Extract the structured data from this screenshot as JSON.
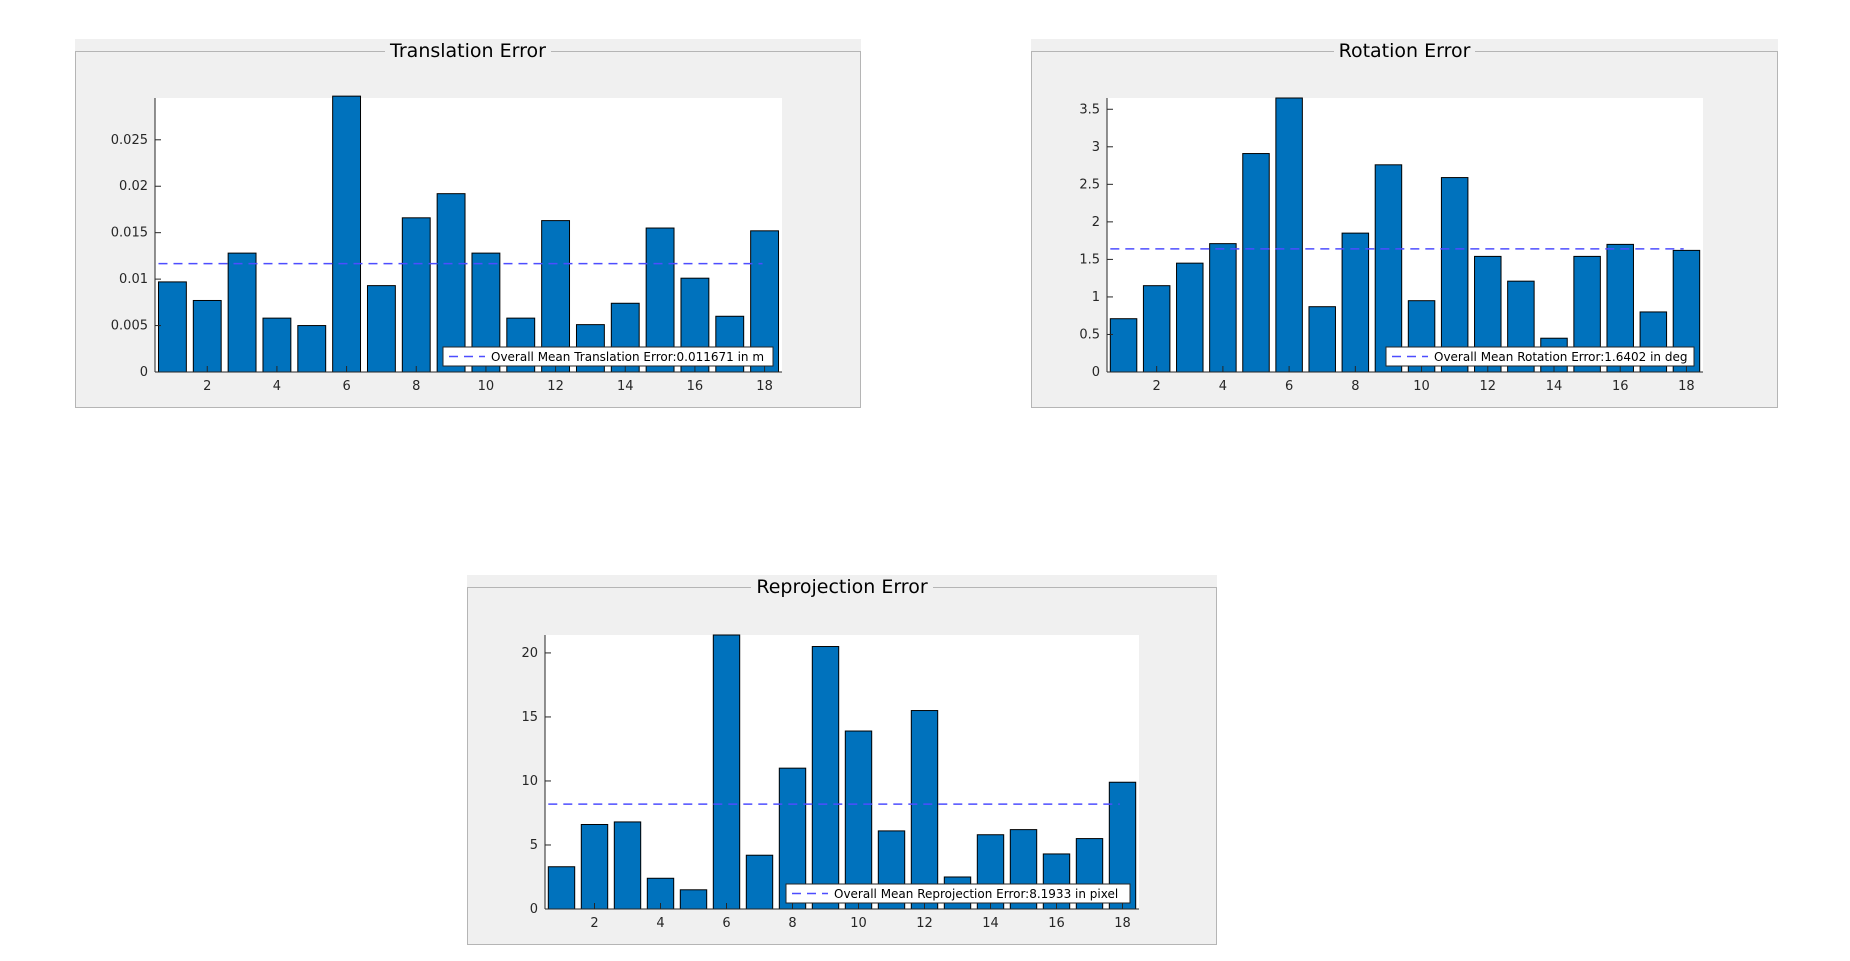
{
  "colors": {
    "bar": "#0072bd",
    "bar_edge": "#000000",
    "mean_line": "#4d4dff",
    "panel_bg": "#f0f0f0",
    "axes_bg": "#ffffff"
  },
  "chart_data": [
    {
      "id": "translation",
      "type": "bar",
      "title": "Translation Error",
      "xlabel": "",
      "ylabel": "",
      "x": [
        1,
        2,
        3,
        4,
        5,
        6,
        7,
        8,
        9,
        10,
        11,
        12,
        13,
        14,
        15,
        16,
        17,
        18
      ],
      "values": [
        0.0097,
        0.0077,
        0.0128,
        0.0058,
        0.005,
        0.0297,
        0.0093,
        0.0166,
        0.0192,
        0.0128,
        0.0058,
        0.0163,
        0.0051,
        0.0074,
        0.0155,
        0.0101,
        0.006,
        0.0152
      ],
      "xlim": [
        0.5,
        18.5
      ],
      "ylim": [
        0,
        0.0295
      ],
      "xticks": [
        2,
        4,
        6,
        8,
        10,
        12,
        14,
        16,
        18
      ],
      "yticks": [
        0,
        0.005,
        0.01,
        0.015,
        0.02,
        0.025
      ],
      "yticklabels": [
        "0",
        "0.005",
        "0.01",
        "0.015",
        "0.02",
        "0.025"
      ],
      "mean": 0.011671,
      "legend": "Overall Mean Translation Error:0.011671 in m",
      "legend_location": "bottom-right",
      "grid": false
    },
    {
      "id": "rotation",
      "type": "bar",
      "title": "Rotation Error",
      "xlabel": "",
      "ylabel": "",
      "x": [
        1,
        2,
        3,
        4,
        5,
        6,
        7,
        8,
        9,
        10,
        11,
        12,
        13,
        14,
        15,
        16,
        17,
        18
      ],
      "values": [
        0.71,
        1.15,
        1.45,
        1.71,
        2.91,
        3.65,
        0.87,
        1.85,
        2.76,
        0.95,
        2.59,
        1.54,
        1.21,
        0.45,
        1.54,
        1.7,
        0.8,
        1.62
      ],
      "xlim": [
        0.5,
        18.5
      ],
      "ylim": [
        0,
        3.65
      ],
      "xticks": [
        2,
        4,
        6,
        8,
        10,
        12,
        14,
        16,
        18
      ],
      "yticks": [
        0,
        0.5,
        1,
        1.5,
        2,
        2.5,
        3,
        3.5
      ],
      "yticklabels": [
        "0",
        "0.5",
        "1",
        "1.5",
        "2",
        "2.5",
        "3",
        "3.5"
      ],
      "mean": 1.6402,
      "legend": "Overall Mean Rotation Error:1.6402 in deg",
      "legend_location": "bottom-right",
      "grid": false
    },
    {
      "id": "reprojection",
      "type": "bar",
      "title": "Reprojection Error",
      "xlabel": "",
      "ylabel": "",
      "x": [
        1,
        2,
        3,
        4,
        5,
        6,
        7,
        8,
        9,
        10,
        11,
        12,
        13,
        14,
        15,
        16,
        17,
        18
      ],
      "values": [
        3.3,
        6.6,
        6.8,
        2.4,
        1.5,
        21.4,
        4.2,
        11.0,
        20.5,
        13.9,
        6.1,
        15.5,
        2.5,
        5.8,
        6.2,
        4.3,
        5.5,
        9.9
      ],
      "xlim": [
        0.5,
        18.5
      ],
      "ylim": [
        0,
        21.4
      ],
      "xticks": [
        2,
        4,
        6,
        8,
        10,
        12,
        14,
        16,
        18
      ],
      "yticks": [
        0,
        5,
        10,
        15,
        20
      ],
      "yticklabels": [
        "0",
        "5",
        "10",
        "15",
        "20"
      ],
      "mean": 8.1933,
      "legend": "Overall Mean Reprojection Error:8.1933 in pixel",
      "legend_location": "bottom-right",
      "grid": false
    }
  ]
}
